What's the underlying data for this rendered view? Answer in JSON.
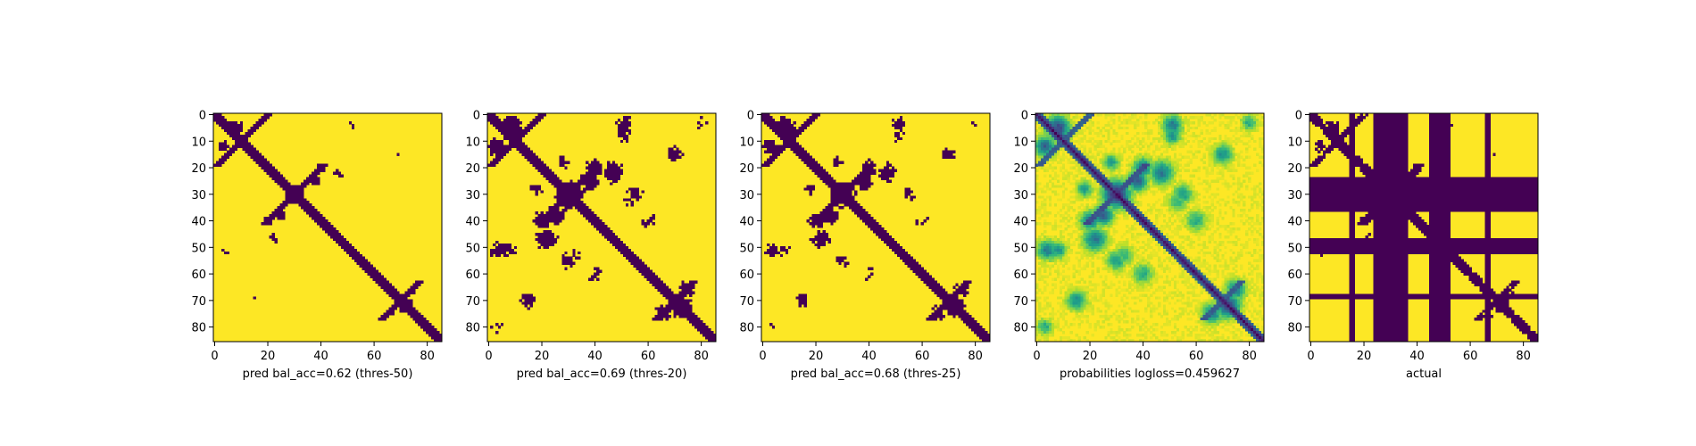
{
  "colors": {
    "low": "#440154",
    "high": "#fde725",
    "colormap": "viridis"
  },
  "chart_data": [
    {
      "type": "heatmap",
      "name": "panel-thres-50",
      "xlabel": "pred bal_acc=0.62 (thres-50)",
      "size": 86,
      "xticks": [
        0,
        20,
        40,
        60,
        80
      ],
      "yticks": [
        0,
        10,
        20,
        30,
        40,
        50,
        60,
        70,
        80
      ],
      "xlim": [
        0,
        85
      ],
      "ylim": [
        85,
        0
      ],
      "values": "binary contact map predicted at threshold 50",
      "threshold": 0.5
    },
    {
      "type": "heatmap",
      "name": "panel-thres-20",
      "xlabel": "pred bal_acc=0.69 (thres-20)",
      "size": 86,
      "xticks": [
        0,
        20,
        40,
        60,
        80
      ],
      "yticks": [
        0,
        10,
        20,
        30,
        40,
        50,
        60,
        70,
        80
      ],
      "xlim": [
        0,
        85
      ],
      "ylim": [
        85,
        0
      ],
      "threshold": 0.2
    },
    {
      "type": "heatmap",
      "name": "panel-thres-25",
      "xlabel": "pred bal_acc=0.68 (thres-25)",
      "size": 86,
      "xticks": [
        0,
        20,
        40,
        60,
        80
      ],
      "yticks": [
        0,
        10,
        20,
        30,
        40,
        50,
        60,
        70,
        80
      ],
      "xlim": [
        0,
        85
      ],
      "ylim": [
        85,
        0
      ],
      "threshold": 0.25
    },
    {
      "type": "heatmap",
      "name": "panel-probabilities",
      "xlabel": "probabilities logloss=0.459627",
      "size": 86,
      "xticks": [
        0,
        20,
        40,
        60,
        80
      ],
      "yticks": [
        0,
        10,
        20,
        30,
        40,
        50,
        60,
        70,
        80
      ],
      "xlim": [
        0,
        85
      ],
      "ylim": [
        85,
        0
      ],
      "continuous": true
    },
    {
      "type": "heatmap",
      "name": "panel-actual",
      "xlabel": "actual",
      "size": 86,
      "xticks": [
        0,
        20,
        40,
        60,
        80
      ],
      "yticks": [
        0,
        10,
        20,
        30,
        40,
        50,
        60,
        70,
        80
      ],
      "xlim": [
        0,
        85
      ],
      "ylim": [
        85,
        0
      ],
      "masked_bands": [
        [
          24,
          36
        ],
        [
          47,
          52
        ]
      ],
      "masked_rows": [
        [
          24,
          36
        ],
        [
          47,
          52
        ],
        [
          68,
          69
        ]
      ],
      "masked_cols": [
        [
          15,
          16
        ],
        [
          45,
          46
        ],
        [
          66,
          67
        ]
      ]
    }
  ]
}
